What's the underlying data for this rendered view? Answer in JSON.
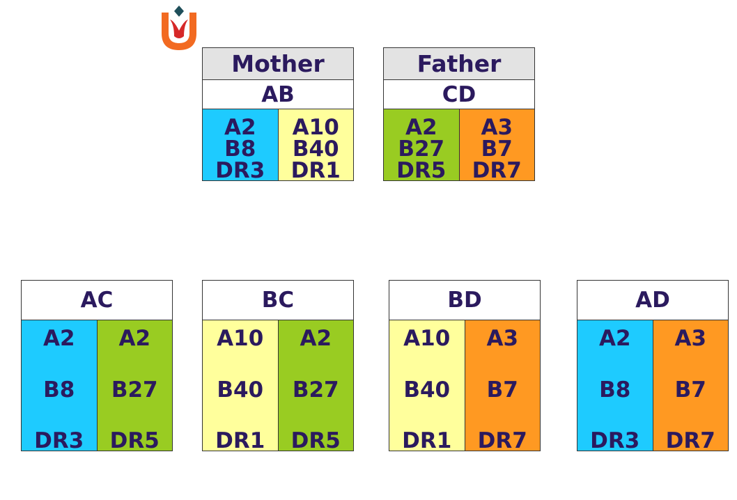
{
  "colors": {
    "A": "#1ecbff",
    "B": "#ffff9c",
    "C": "#99cc22",
    "D": "#ff9922",
    "header_gray": "#e3e3e3",
    "text": "#2b1a5e"
  },
  "logo": {
    "icon": "tulip-logo-icon"
  },
  "parents": [
    {
      "title": "Mother",
      "genotype": "AB",
      "haplotypes": [
        {
          "key": "A",
          "alleles": [
            "A2",
            "B8",
            "DR3"
          ]
        },
        {
          "key": "B",
          "alleles": [
            "A10",
            "B40",
            "DR1"
          ]
        }
      ]
    },
    {
      "title": "Father",
      "genotype": "CD",
      "haplotypes": [
        {
          "key": "C",
          "alleles": [
            "A2",
            "B27",
            "DR5"
          ]
        },
        {
          "key": "D",
          "alleles": [
            "A3",
            "B7",
            "DR7"
          ]
        }
      ]
    }
  ],
  "children": [
    {
      "genotype": "AC",
      "haplotypes": [
        {
          "key": "A",
          "alleles": [
            "A2",
            "B8",
            "DR3"
          ]
        },
        {
          "key": "C",
          "alleles": [
            "A2",
            "B27",
            "DR5"
          ]
        }
      ]
    },
    {
      "genotype": "BC",
      "haplotypes": [
        {
          "key": "B",
          "alleles": [
            "A10",
            "B40",
            "DR1"
          ]
        },
        {
          "key": "C",
          "alleles": [
            "A2",
            "B27",
            "DR5"
          ]
        }
      ]
    },
    {
      "genotype": "BD",
      "haplotypes": [
        {
          "key": "B",
          "alleles": [
            "A10",
            "B40",
            "DR1"
          ]
        },
        {
          "key": "D",
          "alleles": [
            "A3",
            "B7",
            "DR7"
          ]
        }
      ]
    },
    {
      "genotype": "AD",
      "haplotypes": [
        {
          "key": "A",
          "alleles": [
            "A2",
            "B8",
            "DR3"
          ]
        },
        {
          "key": "D",
          "alleles": [
            "A3",
            "B7",
            "DR7"
          ]
        }
      ]
    }
  ]
}
